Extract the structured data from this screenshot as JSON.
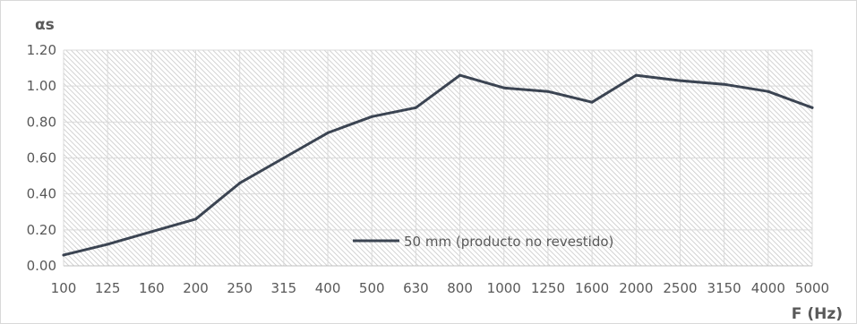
{
  "chart_data": {
    "type": "line",
    "title": "",
    "ylabel": "αs",
    "xlabel": "F (Hz)",
    "categories": [
      "100",
      "125",
      "160",
      "200",
      "250",
      "315",
      "400",
      "500",
      "630",
      "800",
      "1000",
      "1250",
      "1600",
      "2000",
      "2500",
      "3150",
      "4000",
      "5000"
    ],
    "series": [
      {
        "name": "50 mm (producto no revestido)",
        "values": [
          0.06,
          0.12,
          0.19,
          0.26,
          0.46,
          0.6,
          0.74,
          0.83,
          0.88,
          1.06,
          0.99,
          0.97,
          0.91,
          1.06,
          1.03,
          1.01,
          0.97,
          0.88
        ]
      }
    ],
    "yticks": [
      "0.00",
      "0.20",
      "0.40",
      "0.60",
      "0.80",
      "1.00",
      "1.20"
    ],
    "ylim": [
      0,
      1.2
    ],
    "grid": true,
    "legend_position": "center-right-inside",
    "colors": {
      "line": "#3b4452",
      "grid": "#d9d9d9",
      "hatch": "#c8c8c8",
      "text": "#595959"
    }
  }
}
